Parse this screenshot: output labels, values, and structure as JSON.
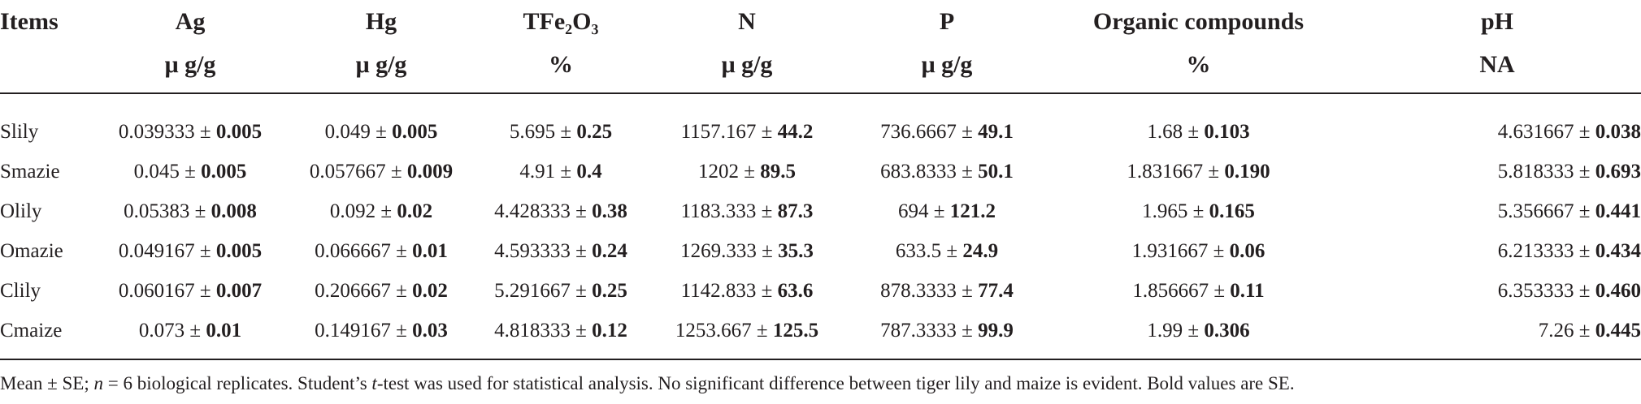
{
  "table": {
    "headers": [
      {
        "name": "Items",
        "unit": ""
      },
      {
        "name": "Ag",
        "unit": "μ g/g"
      },
      {
        "name": "Hg",
        "unit": "μ g/g"
      },
      {
        "name": "TFe₂O₃",
        "unit": "%"
      },
      {
        "name": "N",
        "unit": "μ g/g"
      },
      {
        "name": "P",
        "unit": "μ g/g"
      },
      {
        "name": "Organic compounds",
        "unit": "%"
      },
      {
        "name": "pH",
        "unit": "NA"
      }
    ],
    "rows": [
      {
        "item": "Slily",
        "cells": [
          {
            "mean": "0.039333",
            "se": "0.005"
          },
          {
            "mean": "0.049",
            "se": "0.005"
          },
          {
            "mean": "5.695",
            "se": "0.25"
          },
          {
            "mean": "1157.167",
            "se": "44.2"
          },
          {
            "mean": "736.6667",
            "se": "49.1"
          },
          {
            "mean": "1.68",
            "se": "0.103"
          },
          {
            "mean": "4.631667",
            "se": "0.038"
          }
        ]
      },
      {
        "item": "Smazie",
        "cells": [
          {
            "mean": "0.045",
            "se": "0.005"
          },
          {
            "mean": "0.057667",
            "se": "0.009"
          },
          {
            "mean": "4.91",
            "se": "0.4"
          },
          {
            "mean": "1202",
            "se": "89.5"
          },
          {
            "mean": "683.8333",
            "se": "50.1"
          },
          {
            "mean": "1.831667",
            "se": "0.190"
          },
          {
            "mean": "5.818333",
            "se": "0.693"
          }
        ]
      },
      {
        "item": "Olily",
        "cells": [
          {
            "mean": "0.05383",
            "se": "0.008"
          },
          {
            "mean": "0.092",
            "se": "0.02"
          },
          {
            "mean": "4.428333",
            "se": "0.38"
          },
          {
            "mean": "1183.333",
            "se": "87.3"
          },
          {
            "mean": "694",
            "se": "121.2"
          },
          {
            "mean": "1.965",
            "se": "0.165"
          },
          {
            "mean": "5.356667",
            "se": "0.441"
          }
        ]
      },
      {
        "item": "Omazie",
        "cells": [
          {
            "mean": "0.049167",
            "se": "0.005"
          },
          {
            "mean": "0.066667",
            "se": "0.01"
          },
          {
            "mean": "4.593333",
            "se": "0.24"
          },
          {
            "mean": "1269.333",
            "se": "35.3"
          },
          {
            "mean": "633.5",
            "se": "24.9"
          },
          {
            "mean": "1.931667",
            "se": "0.06"
          },
          {
            "mean": "6.213333",
            "se": "0.434"
          }
        ]
      },
      {
        "item": "Clily",
        "cells": [
          {
            "mean": "0.060167",
            "se": "0.007"
          },
          {
            "mean": "0.206667",
            "se": "0.02"
          },
          {
            "mean": "5.291667",
            "se": "0.25"
          },
          {
            "mean": "1142.833",
            "se": "63.6"
          },
          {
            "mean": "878.3333",
            "se": "77.4"
          },
          {
            "mean": "1.856667",
            "se": "0.11"
          },
          {
            "mean": "6.353333",
            "se": "0.460"
          }
        ]
      },
      {
        "item": "Cmaize",
        "cells": [
          {
            "mean": "0.073",
            "se": "0.01"
          },
          {
            "mean": "0.149167",
            "se": "0.03"
          },
          {
            "mean": "4.818333",
            "se": "0.12"
          },
          {
            "mean": "1253.667",
            "se": "125.5"
          },
          {
            "mean": "787.3333",
            "se": "99.9"
          },
          {
            "mean": "1.99",
            "se": "0.306"
          },
          {
            "mean": "7.26",
            "se": "0.445"
          }
        ]
      }
    ],
    "pm_symbol": "±"
  },
  "footnote": {
    "part1": "Mean ± SE; ",
    "n_var": "n",
    "part2": " = 6 biological replicates. Student’s ",
    "t_var": "t",
    "part3": "-test was used for statistical analysis. No significant difference between tiger lily and maize is evident. Bold values are SE."
  }
}
